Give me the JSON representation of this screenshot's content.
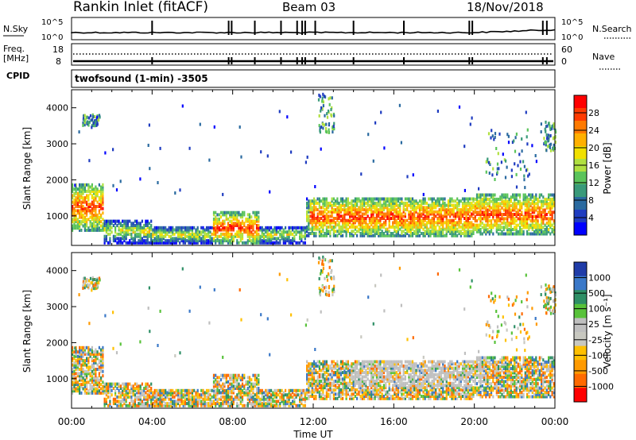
{
  "header": {
    "title": "Rankin Inlet (fitACF)",
    "beam": "Beam 03",
    "date": "18/Nov/2018"
  },
  "sky_panel": {
    "left_label": "N.Sky",
    "left_ticks": [
      "10^5",
      "10^0"
    ],
    "right_ticks": [
      "10^5",
      "10^0"
    ],
    "right_label": "N.Search"
  },
  "freq_panel": {
    "left_label_1": "Freq.",
    "left_label_2": "[MHz]",
    "left_ticks": [
      "18",
      "8"
    ],
    "right_ticks": [
      "60",
      "0"
    ],
    "right_label": "Nave"
  },
  "cpid": {
    "label": "CPID",
    "program": "twofsound (1-min) -3505"
  },
  "chart_data": [
    {
      "type": "heatmap",
      "name": "power",
      "ylabel": "Slant Range [km]",
      "xlabel": "",
      "yticks": [
        "4000",
        "3000",
        "2000",
        "1000"
      ],
      "ylim": [
        180,
        4500
      ],
      "colorbar": {
        "label": "Power [dB]",
        "ticks": [
          "28",
          "24",
          "20",
          "16",
          "12",
          "8",
          "4"
        ],
        "colors": [
          "#ff0000",
          "#ff3a00",
          "#ff7a00",
          "#ffb000",
          "#f0e000",
          "#b0e040",
          "#5bc45b",
          "#3a9a7a",
          "#2a6aa0",
          "#1f3cc0",
          "#0000ff"
        ]
      }
    },
    {
      "type": "heatmap",
      "name": "velocity",
      "ylabel": "Slant Range [km]",
      "xlabel": "Time UT",
      "yticks": [
        "4000",
        "3000",
        "2000",
        "1000"
      ],
      "ylim": [
        180,
        4500
      ],
      "xticks": [
        "00:00",
        "04:00",
        "08:00",
        "12:00",
        "16:00",
        "20:00",
        "00:00"
      ],
      "colorbar": {
        "label": "Velocity [m s⁻¹]",
        "ticks": [
          "1000",
          "500",
          "100",
          "25",
          "-25",
          "-100",
          "-500",
          "-1000"
        ],
        "colors": [
          "#1f3ca8",
          "#3a78c8",
          "#2e8f66",
          "#58c23a",
          "#bfbfbf",
          "#c8c8c0",
          "#ffc000",
          "#ff9a00",
          "#ff6a00",
          "#ff0000"
        ]
      }
    }
  ]
}
